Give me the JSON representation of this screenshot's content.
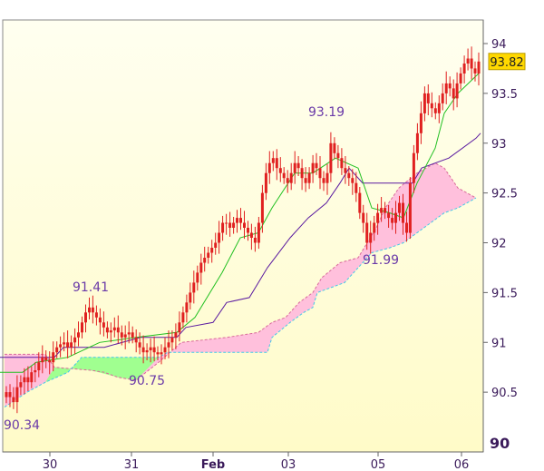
{
  "chart_data": {
    "type": "candlestick",
    "title": "",
    "xlabel": "",
    "ylabel": "",
    "ylim": [
      89.9,
      94.2
    ],
    "y_ticks": [
      "90.5",
      "91",
      "91.5",
      "92",
      "92.5",
      "93",
      "93.5",
      "94"
    ],
    "y_base_label": "90",
    "x_ticks": [
      "30",
      "31",
      "Feb",
      "03",
      "05",
      "06"
    ],
    "grid": false,
    "last_price": "93.82",
    "annotations": [
      "90.34",
      "91.41",
      "90.75",
      "93.19",
      "91.99"
    ],
    "colors": {
      "candle": "#e02020",
      "fast_line": "#22c022",
      "slow_line": "#5a1aa0",
      "cloud_bullish": "#ffc0dc",
      "cloud_bearish": "#a0ff90",
      "background_top": "#fffff0",
      "background_bottom": "#fffbc8",
      "price_badge": "#ffd800"
    },
    "close_series": [
      90.5,
      90.45,
      90.4,
      90.55,
      90.6,
      90.65,
      90.6,
      90.7,
      90.72,
      90.8,
      90.85,
      90.82,
      90.8,
      90.9,
      90.95,
      90.98,
      91.0,
      90.95,
      91.0,
      91.05,
      91.1,
      91.2,
      91.3,
      91.35,
      91.3,
      91.25,
      91.2,
      91.15,
      91.1,
      91.12,
      91.15,
      91.1,
      91.05,
      91.08,
      91.1,
      91.05,
      91.0,
      90.95,
      90.9,
      90.92,
      90.95,
      90.9,
      90.88,
      90.9,
      90.95,
      91.0,
      91.05,
      91.1,
      91.2,
      91.3,
      91.4,
      91.5,
      91.6,
      91.7,
      91.8,
      91.85,
      91.9,
      91.95,
      92.0,
      92.1,
      92.2,
      92.2,
      92.15,
      92.2,
      92.25,
      92.2,
      92.15,
      92.1,
      92.05,
      92.0,
      92.2,
      92.5,
      92.7,
      92.8,
      92.85,
      92.75,
      92.7,
      92.65,
      92.6,
      92.7,
      92.8,
      92.75,
      92.65,
      92.6,
      92.7,
      92.8,
      92.75,
      92.65,
      92.6,
      92.7,
      93.0,
      92.9,
      92.85,
      92.75,
      92.7,
      92.65,
      92.6,
      92.5,
      92.3,
      92.2,
      92.0,
      92.1,
      92.2,
      92.3,
      92.35,
      92.3,
      92.25,
      92.2,
      92.3,
      92.4,
      92.2,
      92.1,
      92.6,
      92.9,
      93.1,
      93.3,
      93.5,
      93.4,
      93.35,
      93.3,
      93.4,
      93.5,
      93.6,
      93.55,
      93.45,
      93.6,
      93.7,
      93.8,
      93.85,
      93.75,
      93.7,
      93.82
    ],
    "fast_line": [
      [
        0,
        90.7
      ],
      [
        25,
        90.7
      ],
      [
        40,
        90.8
      ],
      [
        75,
        90.85
      ],
      [
        110,
        91.0
      ],
      [
        150,
        91.05
      ],
      [
        195,
        91.1
      ],
      [
        215,
        91.25
      ],
      [
        245,
        91.7
      ],
      [
        265,
        92.05
      ],
      [
        285,
        92.1
      ],
      [
        300,
        92.35
      ],
      [
        325,
        92.7
      ],
      [
        345,
        92.7
      ],
      [
        370,
        92.85
      ],
      [
        395,
        92.75
      ],
      [
        410,
        92.35
      ],
      [
        430,
        92.3
      ],
      [
        445,
        92.25
      ],
      [
        460,
        92.6
      ],
      [
        480,
        92.95
      ],
      [
        490,
        93.3
      ],
      [
        505,
        93.5
      ],
      [
        528,
        93.7
      ]
    ],
    "slow_line": [
      [
        0,
        90.85
      ],
      [
        60,
        90.85
      ],
      [
        70,
        90.95
      ],
      [
        115,
        90.95
      ],
      [
        155,
        91.05
      ],
      [
        195,
        91.05
      ],
      [
        205,
        91.15
      ],
      [
        235,
        91.2
      ],
      [
        250,
        91.4
      ],
      [
        275,
        91.45
      ],
      [
        295,
        91.75
      ],
      [
        320,
        92.05
      ],
      [
        340,
        92.25
      ],
      [
        360,
        92.4
      ],
      [
        375,
        92.6
      ],
      [
        385,
        92.75
      ],
      [
        400,
        92.6
      ],
      [
        440,
        92.6
      ],
      [
        455,
        92.6
      ],
      [
        465,
        92.75
      ],
      [
        495,
        92.85
      ],
      [
        525,
        93.05
      ],
      [
        530,
        93.1
      ]
    ],
    "cloud_upper": [
      [
        5,
        90.88
      ],
      [
        50,
        90.88
      ],
      [
        60,
        90.75
      ],
      [
        100,
        90.72
      ],
      [
        115,
        90.7
      ],
      [
        130,
        90.65
      ],
      [
        150,
        90.62
      ],
      [
        175,
        90.8
      ],
      [
        200,
        91.0
      ],
      [
        250,
        91.05
      ],
      [
        285,
        91.1
      ],
      [
        300,
        91.2
      ],
      [
        315,
        91.25
      ],
      [
        330,
        91.4
      ],
      [
        345,
        91.5
      ],
      [
        355,
        91.65
      ],
      [
        375,
        91.8
      ],
      [
        395,
        91.85
      ],
      [
        405,
        92.0
      ],
      [
        415,
        92.15
      ],
      [
        425,
        92.35
      ],
      [
        440,
        92.55
      ],
      [
        460,
        92.7
      ],
      [
        480,
        92.8
      ],
      [
        490,
        92.75
      ],
      [
        505,
        92.55
      ],
      [
        525,
        92.45
      ]
    ],
    "cloud_lower": [
      [
        5,
        90.35
      ],
      [
        30,
        90.5
      ],
      [
        50,
        90.6
      ],
      [
        75,
        90.7
      ],
      [
        90,
        90.85
      ],
      [
        115,
        90.85
      ],
      [
        140,
        90.85
      ],
      [
        175,
        90.85
      ],
      [
        185,
        90.9
      ],
      [
        250,
        90.9
      ],
      [
        295,
        90.9
      ],
      [
        300,
        91.05
      ],
      [
        320,
        91.2
      ],
      [
        335,
        91.3
      ],
      [
        345,
        91.35
      ],
      [
        350,
        91.5
      ],
      [
        380,
        91.6
      ],
      [
        400,
        91.8
      ],
      [
        410,
        91.9
      ],
      [
        430,
        91.95
      ],
      [
        445,
        92.0
      ],
      [
        460,
        92.1
      ],
      [
        490,
        92.3
      ],
      [
        505,
        92.35
      ],
      [
        525,
        92.45
      ]
    ]
  }
}
